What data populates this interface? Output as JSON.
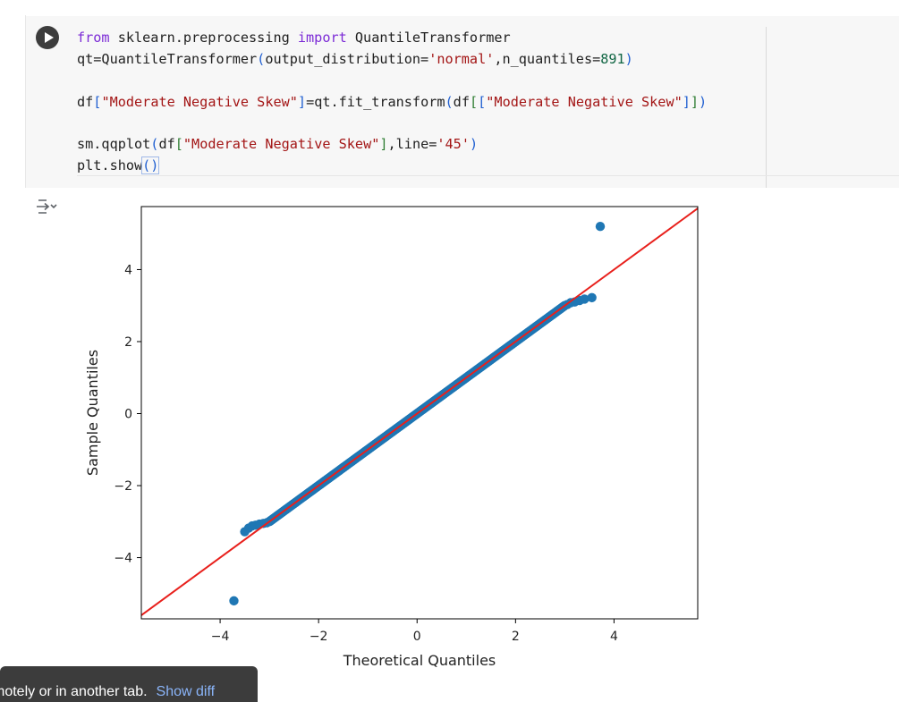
{
  "cell": {
    "code_lines": [
      [
        {
          "t": "from",
          "c": "kw"
        },
        {
          "t": " sklearn.preprocessing ",
          "c": ""
        },
        {
          "t": "import",
          "c": "kw"
        },
        {
          "t": " QuantileTransformer",
          "c": ""
        }
      ],
      [
        {
          "t": "qt=QuantileTransformer",
          "c": ""
        },
        {
          "t": "(",
          "c": "br1"
        },
        {
          "t": "output_distribution=",
          "c": ""
        },
        {
          "t": "'normal'",
          "c": "str"
        },
        {
          "t": ",n_quantiles=",
          "c": ""
        },
        {
          "t": "891",
          "c": "num"
        },
        {
          "t": ")",
          "c": "br1"
        }
      ],
      [],
      [
        {
          "t": "df",
          "c": ""
        },
        {
          "t": "[",
          "c": "br1"
        },
        {
          "t": "\"Moderate Negative Skew\"",
          "c": "str"
        },
        {
          "t": "]",
          "c": "br1"
        },
        {
          "t": "=qt.fit_transform",
          "c": ""
        },
        {
          "t": "(",
          "c": "br1"
        },
        {
          "t": "df",
          "c": ""
        },
        {
          "t": "[",
          "c": "br2"
        },
        {
          "t": "[",
          "c": "br1"
        },
        {
          "t": "\"Moderate Negative Skew\"",
          "c": "str"
        },
        {
          "t": "]",
          "c": "br1"
        },
        {
          "t": "]",
          "c": "br2"
        },
        {
          "t": ")",
          "c": "br1"
        }
      ],
      [],
      [
        {
          "t": "sm.qqplot",
          "c": ""
        },
        {
          "t": "(",
          "c": "br1"
        },
        {
          "t": "df",
          "c": ""
        },
        {
          "t": "[",
          "c": "br2"
        },
        {
          "t": "\"Moderate Negative Skew\"",
          "c": "str"
        },
        {
          "t": "]",
          "c": "br2"
        },
        {
          "t": ",line=",
          "c": ""
        },
        {
          "t": "'45'",
          "c": "str"
        },
        {
          "t": ")",
          "c": "br1"
        }
      ],
      [
        {
          "t": "plt.show",
          "c": ""
        },
        {
          "t": "()",
          "c": "br1 paren-hl"
        },
        {
          "t": "",
          "c": "cursor"
        }
      ]
    ]
  },
  "chart_data": {
    "type": "scatter",
    "title": "",
    "xlabel": "Theoretical Quantiles",
    "ylabel": "Sample Quantiles",
    "xlim": [
      -5.6,
      5.7
    ],
    "ylim": [
      -5.7,
      5.75
    ],
    "xticks": [
      -4,
      -2,
      0,
      2,
      4
    ],
    "yticks": [
      -4,
      -2,
      0,
      2,
      4
    ],
    "xtick_labels": [
      "−4",
      "−2",
      "0",
      "2",
      "4"
    ],
    "ytick_labels": [
      "−4",
      "−2",
      "0",
      "2",
      "4"
    ],
    "reference_line": {
      "type": "45-degree",
      "color": "#e8201c"
    },
    "marker_color": "#1f77b4",
    "grid": false,
    "series": [
      {
        "name": "",
        "tail_points": [
          [
            -3.72,
            -5.2
          ],
          [
            -3.5,
            -3.28
          ],
          [
            -3.42,
            -3.18
          ],
          [
            -3.35,
            -3.12
          ],
          [
            -3.28,
            -3.1
          ],
          [
            -3.2,
            -3.07
          ],
          [
            -3.12,
            -3.05
          ],
          [
            -3.05,
            -3.03
          ],
          [
            3.05,
            3.03
          ],
          [
            3.12,
            3.08
          ],
          [
            3.2,
            3.1
          ],
          [
            3.3,
            3.14
          ],
          [
            3.4,
            3.18
          ],
          [
            3.55,
            3.22
          ],
          [
            3.72,
            5.2
          ]
        ],
        "body_range": [
          -3.0,
          3.0
        ]
      }
    ]
  },
  "toast": {
    "text": "motely or in another tab.",
    "link": "Show diff"
  },
  "icons": {
    "run": "play-icon",
    "output": "output-toggle-icon"
  }
}
